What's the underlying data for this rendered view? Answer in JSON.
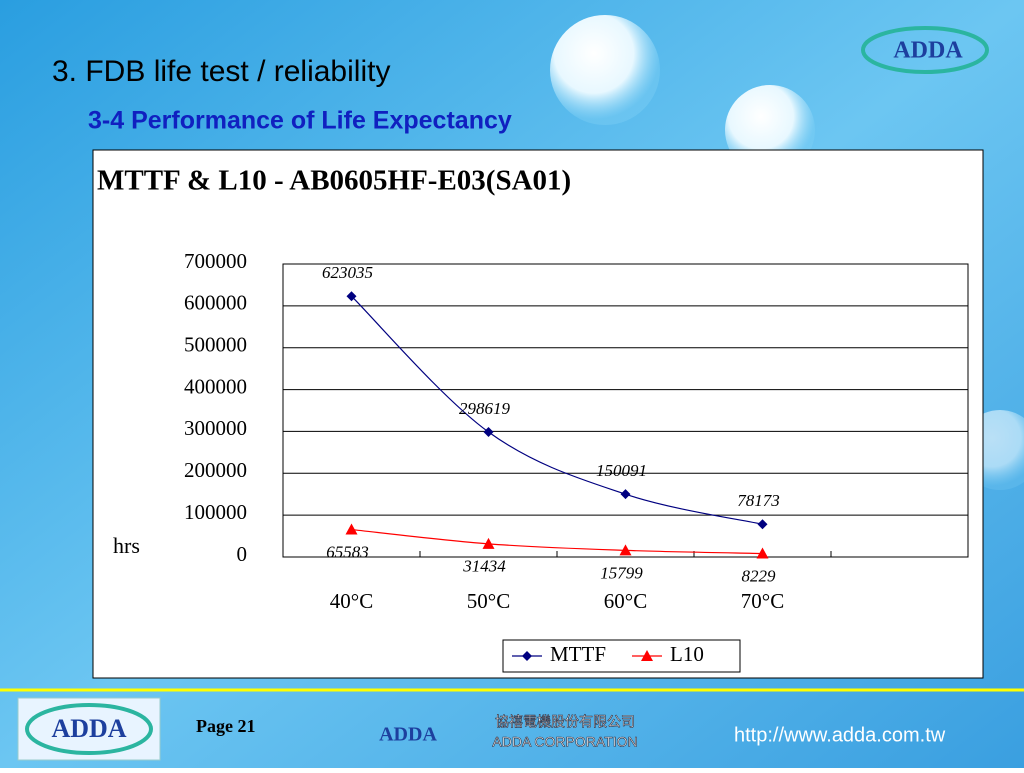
{
  "header": {
    "title": "3. FDB life test / reliability",
    "subtitle": "3-4 Performance of Life Expectancy",
    "logo": "ADDA"
  },
  "chart_data": {
    "type": "line",
    "title": "MTTF & L10 - AB0605HF-E03(SA01)",
    "y_label": "hrs",
    "categories": [
      "40°C",
      "50°C",
      "60°C",
      "70°C",
      null
    ],
    "series": [
      {
        "name": "MTTF",
        "color": "#000080",
        "marker": "diamond",
        "values": [
          623035,
          298619,
          150091,
          78173,
          null
        ]
      },
      {
        "name": "L10",
        "color": "#ff0000",
        "marker": "triangle",
        "values": [
          65583,
          31434,
          15799,
          8229,
          null
        ]
      }
    ],
    "ylim": [
      0,
      700000
    ],
    "yticks": [
      0,
      100000,
      200000,
      300000,
      400000,
      500000,
      600000,
      700000
    ],
    "grid": true,
    "legend": "bottom"
  },
  "footer": {
    "page": "Page 21",
    "logo": "ADDA",
    "company_zh": "協禧電機股份有限公司",
    "company_en": "ADDA CORPORATION",
    "url": "http://www.adda.com.tw"
  }
}
